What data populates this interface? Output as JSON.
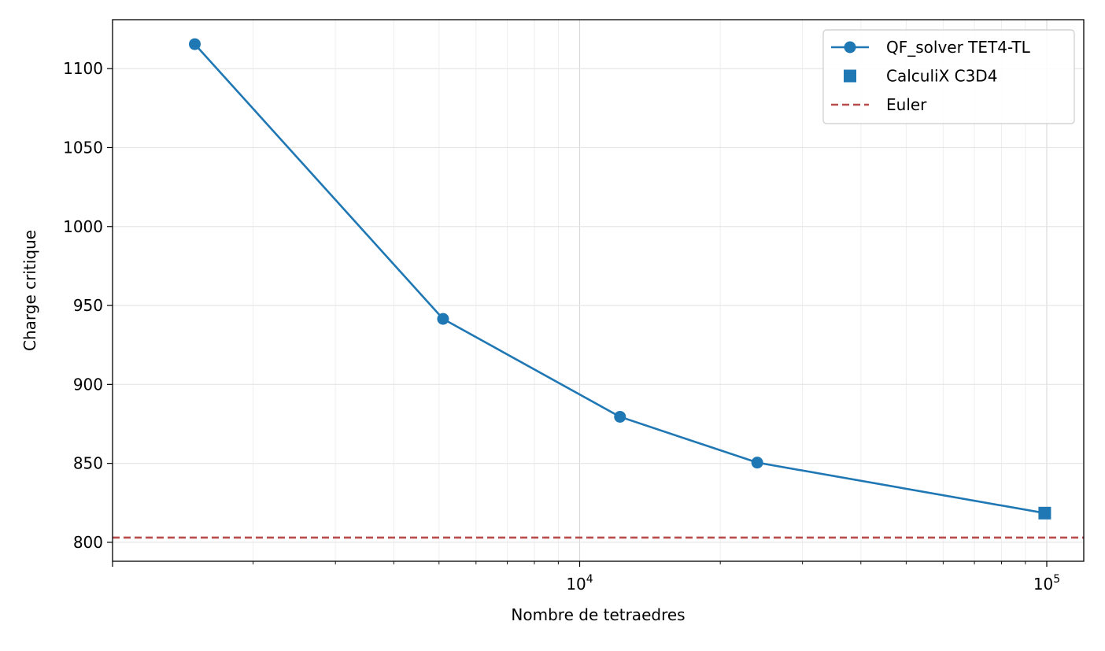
{
  "chart_data": {
    "type": "line",
    "xscale": "log",
    "xlabel": "Nombre de tetraedres",
    "ylabel": "Charge critique",
    "xlim": [
      1000,
      120000
    ],
    "ylim": [
      788,
      1131
    ],
    "x_major_ticks": [
      {
        "value": 10000,
        "base": "10",
        "exp": "4"
      },
      {
        "value": 100000,
        "base": "10",
        "exp": "5"
      }
    ],
    "y_ticks": [
      800,
      850,
      900,
      950,
      1000,
      1050,
      1100
    ],
    "grid": true,
    "legend_position": "top-right",
    "series": [
      {
        "name": "QF_solver TET4-TL",
        "kind": "line-marker",
        "marker": "circle",
        "color": "#1f77b4",
        "x": [
          1500,
          5100,
          12200,
          24000,
          99000
        ],
        "y": [
          1115.5,
          941.5,
          879.5,
          850.5,
          818.5
        ]
      },
      {
        "name": "CalculiX C3D4",
        "kind": "marker",
        "marker": "square",
        "color": "#1f77b4",
        "x": [
          99000
        ],
        "y": [
          818.5
        ]
      },
      {
        "name": "Euler",
        "kind": "hline",
        "linestyle": "dashed",
        "color": "#b84c4c",
        "y": 803
      }
    ]
  }
}
